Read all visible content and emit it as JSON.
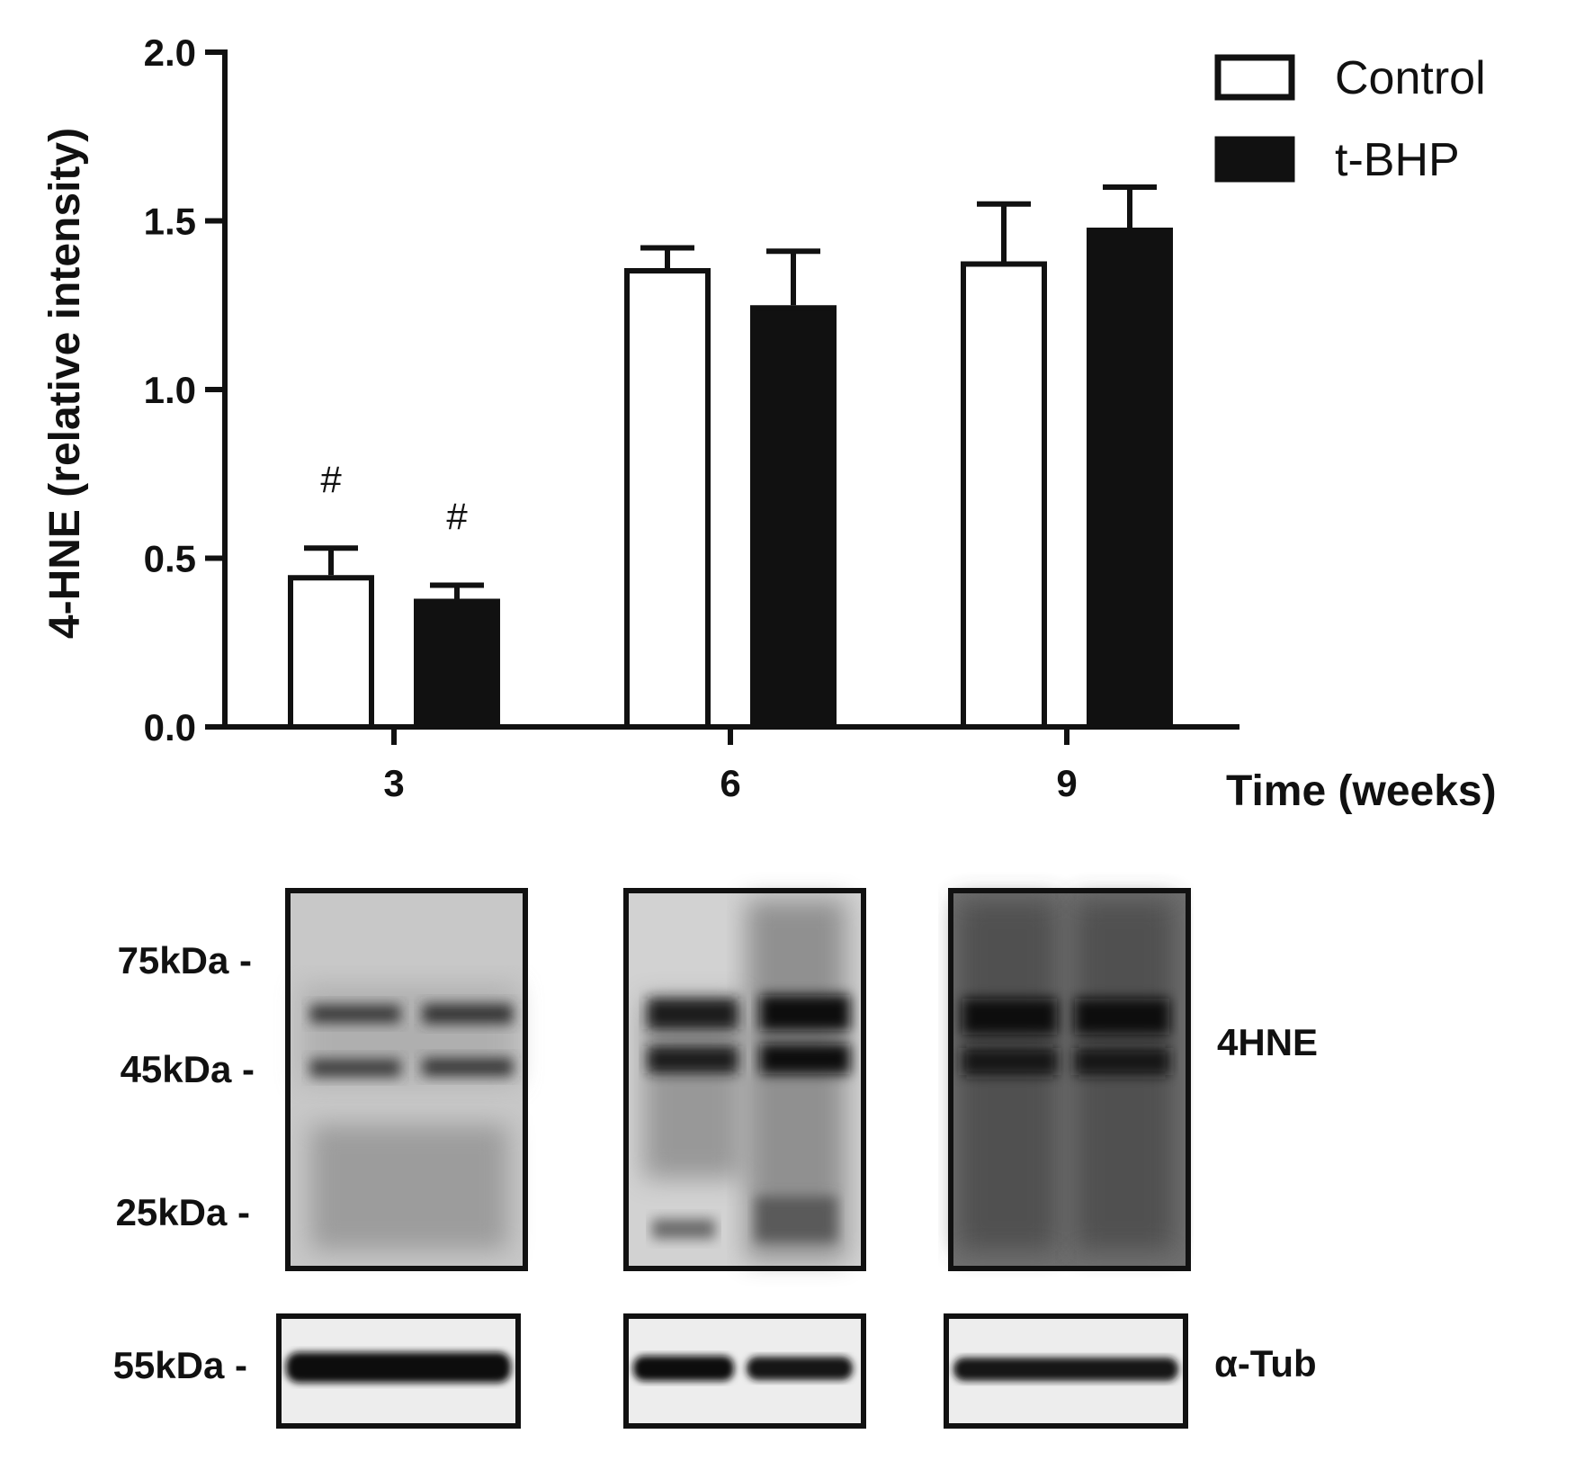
{
  "chart_data": {
    "type": "bar",
    "categories": [
      "3",
      "6",
      "9"
    ],
    "series": [
      {
        "name": "Control",
        "values": [
          0.45,
          1.36,
          1.38
        ],
        "errors": [
          0.08,
          0.06,
          0.17
        ],
        "color": "#ffffff",
        "stroke": "#111111"
      },
      {
        "name": "t-BHP",
        "values": [
          0.38,
          1.25,
          1.48
        ],
        "errors": [
          0.04,
          0.16,
          0.12
        ],
        "color": "#111111",
        "stroke": "#111111"
      }
    ],
    "annotations": [
      {
        "category": "3",
        "series": "Control",
        "text": "#"
      },
      {
        "category": "3",
        "series": "t-BHP",
        "text": "#"
      }
    ],
    "xlabel": "Time (weeks)",
    "ylabel": "4-HNE (relative intensity)",
    "ylim": [
      0,
      2.0
    ],
    "yticks": [
      "0.0",
      "0.5",
      "1.0",
      "1.5",
      "2.0"
    ],
    "legend": "top-right",
    "grid": false
  },
  "blots": {
    "markers_4hne": [
      "75kDa -",
      "45kDa -",
      "25kDa -"
    ],
    "marker_tub": "55kDa -",
    "label_4hne": "4HNE",
    "label_tub": "α-Tub"
  }
}
